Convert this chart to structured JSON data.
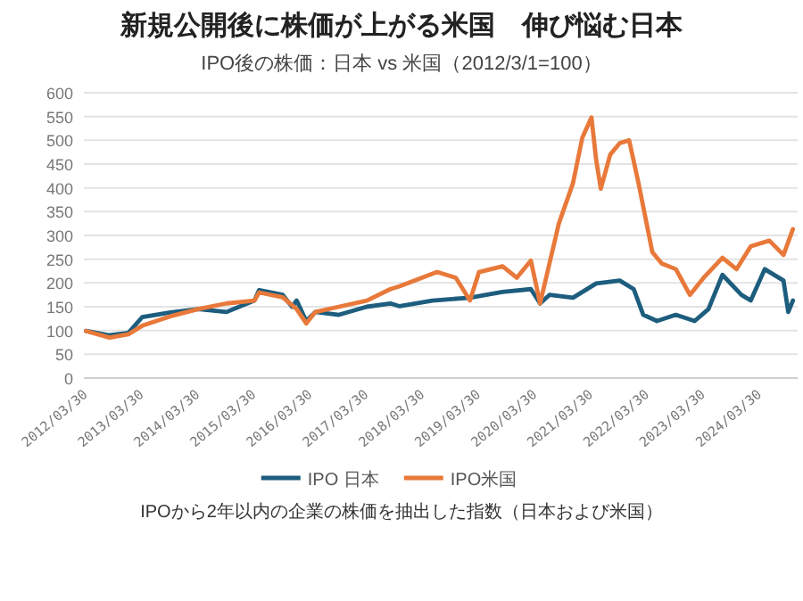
{
  "chart_data": {
    "type": "line",
    "title": "新規公開後に株価が上がる米国　伸び悩む日本",
    "subtitle": "IPO後の株価：日本 vs 米国（2012/3/1=100）",
    "annotations": [
      "IPOから2年以内の企業の株価を抽出した指数（日本および米国）"
    ],
    "xlim": [
      "2012-03-01",
      "2024-11-15"
    ],
    "xticks": [
      {
        "value": "2012-03-30",
        "label": "2012/03/30"
      },
      {
        "value": "2013-03-30",
        "label": "2013/03/30"
      },
      {
        "value": "2014-03-30",
        "label": "2014/03/30"
      },
      {
        "value": "2015-03-30",
        "label": "2015/03/30"
      },
      {
        "value": "2016-03-30",
        "label": "2016/03/30"
      },
      {
        "value": "2017-03-30",
        "label": "2017/03/30"
      },
      {
        "value": "2018-03-30",
        "label": "2018/03/30"
      },
      {
        "value": "2019-03-30",
        "label": "2019/03/30"
      },
      {
        "value": "2020-03-30",
        "label": "2020/03/30"
      },
      {
        "value": "2021-03-30",
        "label": "2021/03/30"
      },
      {
        "value": "2022-03-30",
        "label": "2022/03/30"
      },
      {
        "value": "2023-03-30",
        "label": "2023/03/30"
      },
      {
        "value": "2024-03-30",
        "label": "2024/03/30"
      }
    ],
    "ylim": [
      0,
      600
    ],
    "yticks": [
      0,
      50,
      100,
      150,
      200,
      250,
      300,
      350,
      400,
      450,
      500,
      550,
      600
    ],
    "grid": "y",
    "legend": "bottom",
    "marker": "none",
    "line_style": "solid",
    "series": [
      {
        "name": "IPO 日本",
        "color": "#1d5d7e",
        "x": [
          "2012-03",
          "2012-08",
          "2012-12",
          "2013-03",
          "2013-09",
          "2014-03",
          "2014-09",
          "2015-03",
          "2015-04",
          "2015-09",
          "2015-11",
          "2015-12",
          "2016-02",
          "2016-04",
          "2016-09",
          "2017-03",
          "2017-08",
          "2017-10",
          "2018-05",
          "2019-01",
          "2019-08",
          "2020-02",
          "2020-04",
          "2020-06",
          "2020-11",
          "2021-04",
          "2021-09",
          "2021-12",
          "2022-02",
          "2022-05",
          "2022-09",
          "2023-01",
          "2023-04",
          "2023-07",
          "2023-11",
          "2024-01",
          "2024-04",
          "2024-08",
          "2024-09",
          "2024-10"
        ],
        "values": [
          99,
          90,
          95,
          128,
          138,
          145,
          139,
          163,
          185,
          175,
          150,
          163,
          120,
          139,
          133,
          150,
          157,
          151,
          163,
          169,
          181,
          187,
          157,
          175,
          169,
          199,
          205,
          187,
          133,
          120,
          133,
          120,
          145,
          217,
          175,
          163,
          229,
          205,
          139,
          163
        ]
      },
      {
        "name": "IPO米国",
        "color": "#e8793a",
        "x": [
          "2012-03",
          "2012-08",
          "2012-12",
          "2013-03",
          "2013-09",
          "2014-03",
          "2014-09",
          "2015-03",
          "2015-04",
          "2015-09",
          "2015-12",
          "2016-02",
          "2016-04",
          "2016-09",
          "2017-03",
          "2017-08",
          "2017-10",
          "2018-06",
          "2018-10",
          "2019-01",
          "2019-03",
          "2019-08",
          "2019-11",
          "2020-02",
          "2020-04",
          "2020-06",
          "2020-08",
          "2020-11",
          "2021-01",
          "2021-03",
          "2021-04",
          "2021-05",
          "2021-07",
          "2021-09",
          "2021-11",
          "2022-01",
          "2022-04",
          "2022-06",
          "2022-09",
          "2022-12",
          "2023-03",
          "2023-07",
          "2023-10",
          "2024-01",
          "2024-05",
          "2024-08",
          "2024-10"
        ],
        "values": [
          99,
          85,
          92,
          110,
          130,
          145,
          157,
          163,
          180,
          170,
          145,
          115,
          139,
          150,
          163,
          187,
          193,
          223,
          211,
          163,
          223,
          235,
          211,
          247,
          157,
          241,
          325,
          410,
          506,
          548,
          458,
          398,
          470,
          494,
          500,
          410,
          265,
          241,
          229,
          175,
          211,
          253,
          229,
          277,
          289,
          259,
          313
        ]
      }
    ]
  }
}
